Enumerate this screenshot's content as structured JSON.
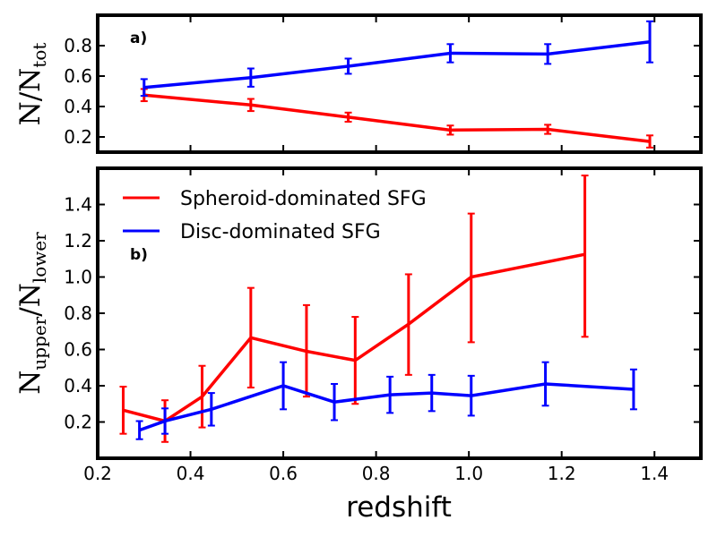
{
  "chart_data": [
    {
      "type": "line",
      "panel_label": "a)",
      "ylabel_main": "N/N",
      "ylabel_sub": "tot",
      "xlim": [
        0.2,
        1.5
      ],
      "ylim": [
        0.1,
        1.0
      ],
      "xticks": [
        "0.2",
        "0.4",
        "0.6",
        "0.8",
        "1.0",
        "1.2",
        "1.4"
      ],
      "yticks": [
        "0.2",
        "0.4",
        "0.6",
        "0.8"
      ],
      "series": [
        {
          "color": "#ff0000",
          "x": [
            0.3,
            0.53,
            0.74,
            0.96,
            1.17,
            1.39
          ],
          "y": [
            0.475,
            0.41,
            0.33,
            0.245,
            0.25,
            0.17
          ],
          "err": [
            0.04,
            0.04,
            0.03,
            0.03,
            0.03,
            0.04
          ]
        },
        {
          "color": "#0000ff",
          "x": [
            0.3,
            0.53,
            0.74,
            0.96,
            1.17,
            1.39
          ],
          "y": [
            0.525,
            0.59,
            0.665,
            0.75,
            0.745,
            0.825
          ],
          "err": [
            0.055,
            0.06,
            0.05,
            0.06,
            0.065,
            0.135
          ]
        }
      ]
    },
    {
      "type": "line",
      "panel_label": "b)",
      "ylabel_main": "N",
      "ylabel_sub1": "upper",
      "ylabel_mid": "/N",
      "ylabel_sub2": "lower",
      "xlabel": "redshift",
      "xlim": [
        0.2,
        1.5
      ],
      "ylim": [
        0.0,
        1.6
      ],
      "xticks": [
        "0.2",
        "0.4",
        "0.6",
        "0.8",
        "1.0",
        "1.2",
        "1.4"
      ],
      "yticks": [
        "0.2",
        "0.4",
        "0.6",
        "0.8",
        "1.0",
        "1.2",
        "1.4"
      ],
      "legend": {
        "placement": "top-left",
        "entries": [
          {
            "label": "Spheroid-dominated SFG",
            "color": "#ff0000"
          },
          {
            "label": "Disc-dominated SFG",
            "color": "#0000ff"
          }
        ]
      },
      "series": [
        {
          "name": "Spheroid-dominated SFG",
          "color": "#ff0000",
          "x": [
            0.255,
            0.345,
            0.425,
            0.53,
            0.65,
            0.755,
            0.87,
            1.005,
            1.25
          ],
          "y": [
            0.265,
            0.205,
            0.34,
            0.665,
            0.59,
            0.54,
            0.74,
            1.0,
            1.125
          ],
          "err_low": [
            0.13,
            0.115,
            0.17,
            0.275,
            0.25,
            0.24,
            0.28,
            0.36,
            0.455
          ],
          "err_high": [
            0.13,
            0.115,
            0.17,
            0.275,
            0.255,
            0.24,
            0.275,
            0.35,
            0.435
          ]
        },
        {
          "name": "Disc-dominated SFG",
          "color": "#0000ff",
          "x": [
            0.29,
            0.345,
            0.445,
            0.6,
            0.71,
            0.83,
            0.92,
            1.005,
            1.165,
            1.355
          ],
          "y": [
            0.155,
            0.205,
            0.27,
            0.4,
            0.31,
            0.35,
            0.36,
            0.345,
            0.41,
            0.38
          ],
          "err_low": [
            0.05,
            0.07,
            0.09,
            0.13,
            0.1,
            0.1,
            0.1,
            0.11,
            0.12,
            0.11
          ],
          "err_high": [
            0.05,
            0.07,
            0.09,
            0.13,
            0.1,
            0.1,
            0.1,
            0.11,
            0.12,
            0.11
          ]
        }
      ]
    }
  ]
}
